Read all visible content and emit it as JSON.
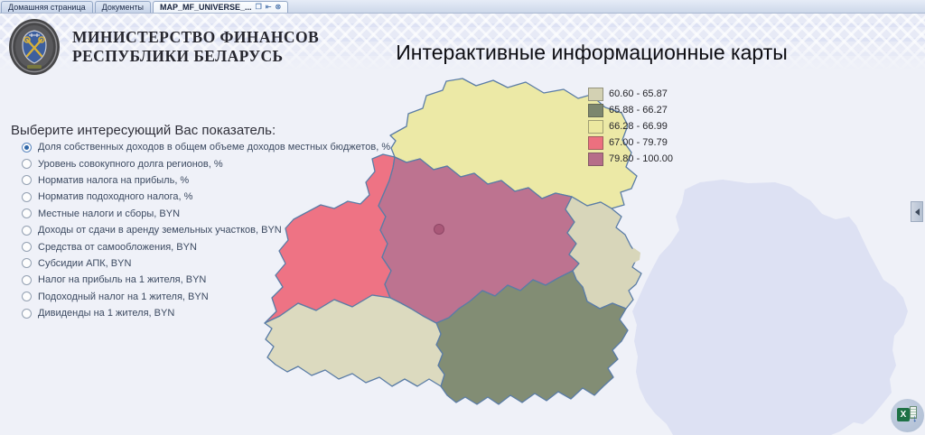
{
  "tabs": {
    "items": [
      {
        "label": "Домашняя страница",
        "active": false
      },
      {
        "label": "Документы",
        "active": false
      },
      {
        "label": "MAP_MF_UNIVERSE_...",
        "active": true
      }
    ]
  },
  "icons": {
    "popout": "❐",
    "dock": "⇤",
    "close": "⊗",
    "excel_x": "X",
    "excel_arrow": "↓"
  },
  "header": {
    "org_name_line1": "МИНИСТЕРСТВО ФИНАНСОВ",
    "org_name_line2": "РЕСПУБЛИКИ БЕЛАРУСЬ",
    "page_title": "Интерактивные информационные карты"
  },
  "selector": {
    "prompt": "Выберите интересующий Вас показатель:",
    "options": [
      {
        "label": "Доля собственных доходов в общем объеме доходов местных бюджетов, %",
        "selected": true
      },
      {
        "label": "Уровень совокупного долга регионов, %",
        "selected": false
      },
      {
        "label": "Норматив налога на прибыль, %",
        "selected": false
      },
      {
        "label": "Норматив подоходного налога, %",
        "selected": false
      },
      {
        "label": "Местные налоги и сборы, BYN",
        "selected": false
      },
      {
        "label": "Доходы от сдачи в аренду земельных участков, BYN",
        "selected": false
      },
      {
        "label": "Средства от самообложения, BYN",
        "selected": false
      },
      {
        "label": "Субсидии АПК, BYN",
        "selected": false
      },
      {
        "label": "Налог на прибыль на 1 жителя, BYN",
        "selected": false
      },
      {
        "label": "Подоходный налог на 1 жителя, BYN",
        "selected": false
      },
      {
        "label": "Дивиденды на 1 жителя, BYN",
        "selected": false
      }
    ]
  },
  "legend": {
    "items": [
      {
        "range": "60.60 - 65.87",
        "color": "#d3d1b3"
      },
      {
        "range": "65.88 - 66.27",
        "color": "#7c866e"
      },
      {
        "range": "66.28 - 66.99",
        "color": "#ece8a0"
      },
      {
        "range": "67.00 - 79.79",
        "color": "#ec707f"
      },
      {
        "range": "79.80 - 100.00",
        "color": "#b66d89"
      }
    ]
  },
  "map": {
    "border_color": "#5a7ca6",
    "shadow_color": "#dde1f3",
    "marker_color": "#a95878",
    "regions": {
      "north": "#ece9a6",
      "west": "#ee7384",
      "center": "#bd7390",
      "east": "#d8d6ba",
      "southeast": "#828d74",
      "southwest": "#dcdabf"
    }
  }
}
